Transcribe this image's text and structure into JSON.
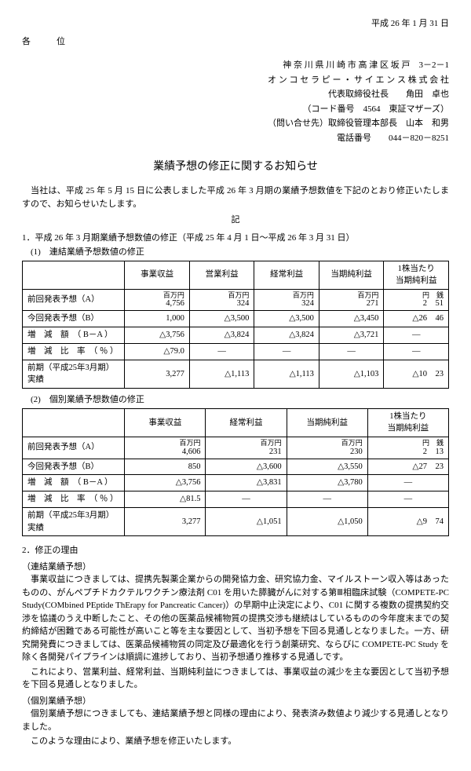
{
  "header": {
    "date": "平成 26 年 1 月 31 日",
    "to": "各　位",
    "address": "神 奈 川 県 川 崎 市 高 津 区 坂 戸　3－2－1",
    "company": "オ ン コ セ ラ ピ ー ・ サ イ エ ン ス 株 式 会 社",
    "president": "代表取締役社長　　角田　卓也",
    "code": "（コード番号　4564　東証マザーズ）",
    "contact": "（問い合せ先）取締役管理本部長　山本　和男",
    "tel": "電話番号　　044－820－8251"
  },
  "title": "業績予想の修正に関するお知らせ",
  "intro1": "当社は、平成 25 年 5 月 15 日に公表しました平成 26 年 3 月期の業績予想数値を下記のとおり修正いたしますので、お知らせいたします。",
  "ki": "記",
  "sec1": {
    "head": "1．平成 26 年 3 月期業績予想数値の修正（平成 25 年 4 月 1 日～平成 26 年 3 月 31 日）",
    "t1head": "(1)　連結業績予想数値の修正",
    "t2head": "(2)　個別業績予想数値の修正"
  },
  "t1": {
    "cols": [
      "事業収益",
      "営業利益",
      "経常利益",
      "当期純利益",
      "1株当たり\n当期純利益"
    ],
    "rows": [
      {
        "label": "前回発表予想（A）",
        "unit": "百万円",
        "vals": [
          "4,756",
          "324",
          "324",
          "271",
          "2　51"
        ],
        "lastunit": "円　銭"
      },
      {
        "label": "今回発表予想（B）",
        "vals": [
          "1,000",
          "△3,500",
          "△3,500",
          "△3,450",
          "△26　46"
        ]
      },
      {
        "label": "増　減　額　（ B－A ）",
        "vals": [
          "△3,756",
          "△3,824",
          "△3,824",
          "△3,721",
          "―"
        ]
      },
      {
        "label": "増　減　比　率　（ ％ ）",
        "vals": [
          "△79.0",
          "―",
          "―",
          "―",
          "―"
        ]
      },
      {
        "label": "前期（平成25年3月期）実績",
        "vals": [
          "3,277",
          "△1,113",
          "△1,113",
          "△1,103",
          "△10　23"
        ]
      }
    ]
  },
  "t2": {
    "cols": [
      "事業収益",
      "経常利益",
      "当期純利益",
      "1株当たり\n当期純利益"
    ],
    "rows": [
      {
        "label": "前回発表予想（A）",
        "unit": "百万円",
        "vals": [
          "4,606",
          "231",
          "230",
          "2　13"
        ],
        "lastunit": "円　銭"
      },
      {
        "label": "今回発表予想（B）",
        "vals": [
          "850",
          "△3,600",
          "△3,550",
          "△27　23"
        ]
      },
      {
        "label": "増　減　額　（ B－A ）",
        "vals": [
          "△3,756",
          "△3,831",
          "△3,780",
          "―"
        ]
      },
      {
        "label": "増　減　比　率　（ ％ ）",
        "vals": [
          "△81.5",
          "―",
          "―",
          "―"
        ]
      },
      {
        "label": "前期（平成25年3月期）実績",
        "vals": [
          "3,277",
          "△1,051",
          "△1,050",
          "△9　74"
        ]
      }
    ]
  },
  "sec2": {
    "head": "2．修正の理由",
    "h1": "（連結業績予想）",
    "p1": "事業収益につきましては、提携先製薬企業からの開発協力金、研究協力金、マイルストーン収入等はあったものの、がんペプチドカクテルワクチン療法剤 C01 を用いた膵臓がんに対する第Ⅲ相臨床試験（COMPETE-PC Study(COMbined PEptide ThErapy for Pancreatic Cancer)）の早期中止決定により、C01 に関する複数の提携契約交渉を協議のうえ中断したこと、その他の医薬品候補物質の提携交渉も継続はしているものの今年度末までの契約締結が困難である可能性が高いこと等を主な要因として、当初予想を下回る見通しとなりました。一方、研究開発費につきましては、医薬品候補物質の同定及び最適化を行う創薬研究、ならびに COMPETE-PC Study を除く各開発パイプラインは順調に進捗しており、当初予想通り推移する見通しです。",
    "p2": "これにより、営業利益、経常利益、当期純利益につきましては、事業収益の減少を主な要因として当初予想を下回る見通しとなりました。",
    "h2": "（個別業績予想）",
    "p3": "個別業績予想につきましても、連結業績予想と同様の理由により、発表済み数値より減少する見通しとなりました。",
    "p4": "このような理由により、業績予想を修正いたします。"
  }
}
